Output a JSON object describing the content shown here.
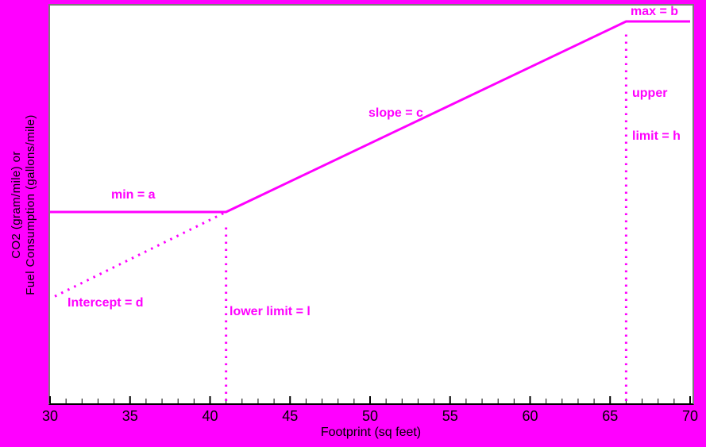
{
  "page": {
    "background_color": "#ff00ff",
    "accent_color": "#ff00ff"
  },
  "chart_data": {
    "type": "line",
    "title": "",
    "xlabel": "Footprint (sq feet)",
    "ylabel_lines": [
      "CO2 (gram/mile) or",
      "Fuel Consumption (gallons/mile)"
    ],
    "xlim": [
      30,
      70
    ],
    "x_major_ticks": [
      30,
      35,
      40,
      45,
      50,
      55,
      60,
      65,
      70
    ],
    "x_minor_tick_step": 1,
    "y_axis_note": "y axis has no ticks or numeric labels; y values expressed as fraction of plot height from bottom",
    "grid": "off",
    "line_color": "#ff00ff",
    "series": [
      {
        "name": "footprint-standard-curve",
        "style": "solid",
        "x": [
          30,
          41,
          66,
          70
        ],
        "y_frac": [
          0.481,
          0.481,
          0.96,
          0.96
        ],
        "description": "flat at min=a up to lower limit 41, rises with slope=c, flat at max=b after upper limit 66"
      },
      {
        "name": "intercept-extension",
        "style": "dotted",
        "x": [
          30.3,
          41
        ],
        "y_frac": [
          0.269,
          0.481
        ]
      },
      {
        "name": "lower-limit-guide",
        "style": "dotted-vertical",
        "x": 41,
        "y_frac_from": 0.006,
        "y_frac_to": 0.455
      },
      {
        "name": "upper-limit-guide",
        "style": "dotted-vertical",
        "x": 66,
        "y_frac_from": 0.006,
        "y_frac_to": 0.94
      }
    ],
    "annotations": {
      "min": "min = a",
      "max": "max = b",
      "slope": "slope = c",
      "intercept": "Intercept = d",
      "lower_limit": "lower limit = l",
      "upper_limit_line1": "upper",
      "upper_limit_line2": "limit = h"
    }
  }
}
